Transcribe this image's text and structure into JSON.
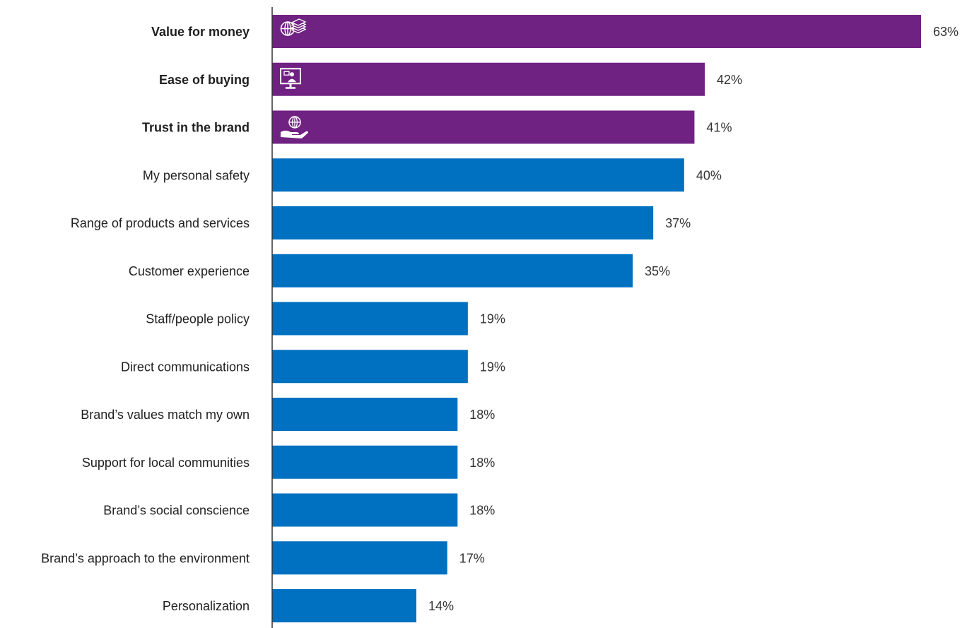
{
  "chart_data": {
    "type": "bar",
    "orientation": "horizontal",
    "title": "",
    "xlabel": "",
    "ylabel": "",
    "unit": "%",
    "xlim": [
      0,
      63
    ],
    "grid": false,
    "categories": [
      "Value for money",
      "Ease of buying",
      "Trust in the brand",
      "My personal safety",
      "Range of products and services",
      "Customer experience",
      "Staff/people policy",
      "Direct communications",
      "Brand’s values match my own",
      "Support for local communities",
      "Brand’s social conscience",
      "Brand’s approach to the environment",
      "Personalization"
    ],
    "values": [
      63,
      42,
      41,
      40,
      37,
      35,
      19,
      19,
      18,
      18,
      18,
      17,
      14
    ],
    "value_labels": [
      "63%",
      "42%",
      "41%",
      "40%",
      "37%",
      "35%",
      "19%",
      "19%",
      "18%",
      "18%",
      "18%",
      "17%",
      "14%"
    ],
    "highlighted": [
      true,
      true,
      true,
      false,
      false,
      false,
      false,
      false,
      false,
      false,
      false,
      false,
      false
    ],
    "bar_icons": [
      "globe-money-icon",
      "monitor-presenter-icon",
      "hand-globe-icon",
      "",
      "",
      "",
      "",
      "",
      "",
      "",
      "",
      "",
      ""
    ],
    "colors": {
      "highlight": "#702283",
      "default": "#0070c0",
      "axis": "#333333"
    }
  }
}
